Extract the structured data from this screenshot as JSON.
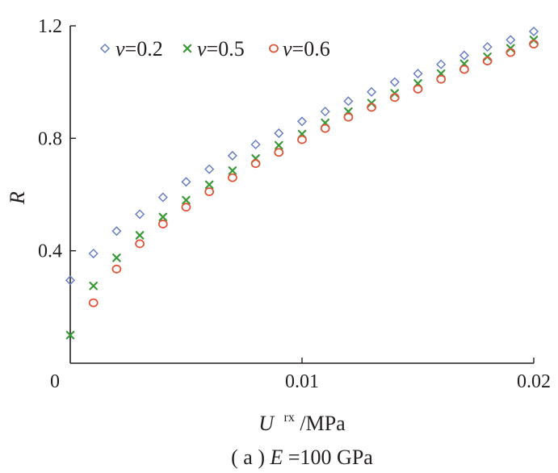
{
  "chart_data": {
    "type": "scatter",
    "xlabel": {
      "main": "U",
      "superscript": "rx",
      "unit": "/MPa"
    },
    "ylabel": "R",
    "caption": {
      "prefix": "( a ) ",
      "var": "E",
      "rest": "=100 GPa"
    },
    "xlim": [
      0,
      0.02
    ],
    "ylim": [
      0,
      1.2
    ],
    "xticks": [
      {
        "value": 0,
        "label": "0"
      },
      {
        "value": 0.01,
        "label": "0.01"
      },
      {
        "value": 0.02,
        "label": "0.02"
      }
    ],
    "yticks": [
      {
        "value": 0.4,
        "label": "0.4"
      },
      {
        "value": 0.8,
        "label": "0.8"
      },
      {
        "value": 1.2,
        "label": "1.2"
      }
    ],
    "legend_position": "top-left",
    "series": [
      {
        "name": "v=0.2",
        "var": "v",
        "eq": "=0.2",
        "marker": "diamond",
        "color": "#6a7fc6",
        "x": [
          0,
          0.001,
          0.002,
          0.003,
          0.004,
          0.005,
          0.006,
          0.007,
          0.008,
          0.009,
          0.01,
          0.011,
          0.012,
          0.013,
          0.014,
          0.015,
          0.016,
          0.017,
          0.018,
          0.019,
          0.02
        ],
        "y": [
          0.295,
          0.39,
          0.47,
          0.53,
          0.59,
          0.645,
          0.69,
          0.738,
          0.778,
          0.818,
          0.86,
          0.895,
          0.932,
          0.965,
          1.0,
          1.03,
          1.063,
          1.095,
          1.125,
          1.15,
          1.18
        ]
      },
      {
        "name": "v=0.5",
        "var": "v",
        "eq": "=0.5",
        "marker": "x",
        "color": "#3a9a3a",
        "x": [
          0,
          0.001,
          0.002,
          0.003,
          0.004,
          0.005,
          0.006,
          0.007,
          0.008,
          0.009,
          0.01,
          0.011,
          0.012,
          0.013,
          0.014,
          0.015,
          0.016,
          0.017,
          0.018,
          0.019,
          0.02
        ],
        "y": [
          0.1,
          0.275,
          0.375,
          0.455,
          0.52,
          0.58,
          0.635,
          0.685,
          0.728,
          0.775,
          0.815,
          0.855,
          0.895,
          0.925,
          0.96,
          0.995,
          1.03,
          1.065,
          1.09,
          1.12,
          1.15
        ]
      },
      {
        "name": "v=0.6",
        "var": "v",
        "eq": "=0.6",
        "marker": "circle",
        "color": "#e0553a",
        "x": [
          0.001,
          0.002,
          0.003,
          0.004,
          0.005,
          0.006,
          0.007,
          0.008,
          0.009,
          0.01,
          0.011,
          0.012,
          0.013,
          0.014,
          0.015,
          0.016,
          0.017,
          0.018,
          0.019,
          0.02
        ],
        "y": [
          0.215,
          0.335,
          0.425,
          0.495,
          0.555,
          0.61,
          0.66,
          0.71,
          0.75,
          0.795,
          0.835,
          0.875,
          0.91,
          0.945,
          0.975,
          1.01,
          1.045,
          1.075,
          1.105,
          1.135
        ]
      }
    ]
  }
}
